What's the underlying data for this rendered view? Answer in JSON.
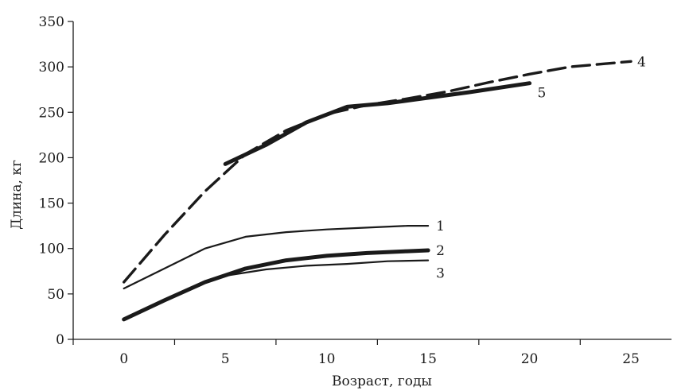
{
  "chart_data": {
    "type": "line",
    "title": "",
    "xlabel": "Возраст, годы",
    "ylabel": "Длина, кг",
    "xlim": [
      -2.5,
      27
    ],
    "ylim": [
      0,
      350
    ],
    "x_ticks": [
      "0",
      "5",
      "10",
      "15",
      "20",
      "25"
    ],
    "y_ticks": [
      "0",
      "50",
      "100",
      "150",
      "200",
      "250",
      "300",
      "350"
    ],
    "grid": false,
    "series": [
      {
        "name": "1",
        "color": "#1a1a1a",
        "width": 2.2,
        "dash": "",
        "x": [
          0,
          2,
          4,
          6,
          8,
          10,
          12,
          14,
          15
        ],
        "y": [
          56,
          78,
          100,
          113,
          118,
          121,
          123,
          125,
          125
        ]
      },
      {
        "name": "2",
        "color": "#1a1a1a",
        "width": 5,
        "dash": "",
        "x": [
          0,
          2,
          4,
          6,
          8,
          10,
          12,
          14,
          15
        ],
        "y": [
          22,
          43,
          63,
          78,
          87,
          92,
          95,
          97,
          98
        ]
      },
      {
        "name": "3",
        "color": "#1a1a1a",
        "width": 2.2,
        "dash": "",
        "x": [
          5,
          7,
          9,
          11,
          13,
          15
        ],
        "y": [
          70,
          77,
          81,
          83,
          86,
          87
        ]
      },
      {
        "name": "4",
        "color": "#1a1a1a",
        "width": 3.4,
        "dash": "22 9",
        "x": [
          0,
          2,
          4,
          6,
          8,
          10,
          12,
          14,
          16,
          18,
          20,
          22,
          25
        ],
        "y": [
          63,
          115,
          163,
          204,
          230,
          248,
          258,
          265,
          273,
          283,
          292,
          300,
          306
        ]
      },
      {
        "name": "5",
        "color": "#1a1a1a",
        "width": 5,
        "dash": "",
        "x": [
          5,
          7,
          9,
          11,
          13,
          15,
          17,
          20
        ],
        "y": [
          193,
          214,
          239,
          256,
          260,
          266,
          272,
          282
        ]
      }
    ]
  }
}
